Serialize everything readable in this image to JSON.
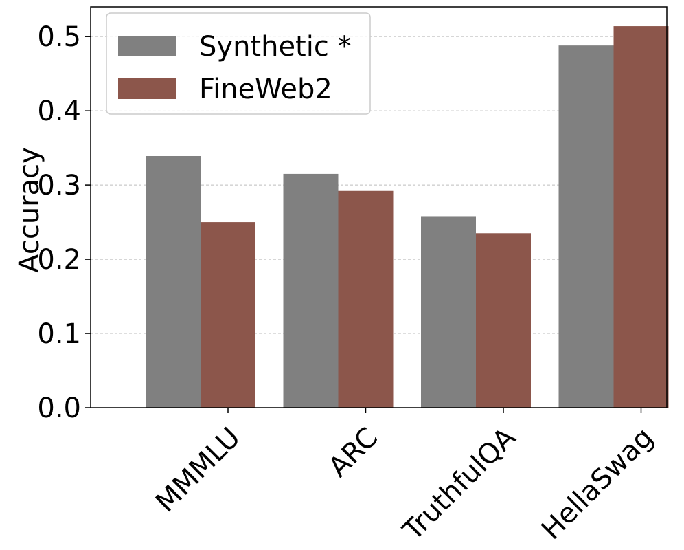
{
  "chart_data": {
    "type": "bar",
    "categories": [
      "MMMLU",
      "ARC",
      "TruthfulQA",
      "HellaSwag"
    ],
    "series": [
      {
        "name": "Synthetic *",
        "color": "#808080",
        "values": [
          0.339,
          0.315,
          0.258,
          0.488
        ]
      },
      {
        "name": "FineWeb2",
        "color": "#8c564b",
        "values": [
          0.25,
          0.292,
          0.235,
          0.514
        ]
      }
    ],
    "title": "",
    "xlabel": "",
    "ylabel": "Accuracy",
    "ylim": [
      0,
      0.54
    ],
    "yticks": [
      "0.0",
      "0.1",
      "0.2",
      "0.3",
      "0.4",
      "0.5"
    ],
    "grid": "y-dashed",
    "legend": "top-left"
  }
}
